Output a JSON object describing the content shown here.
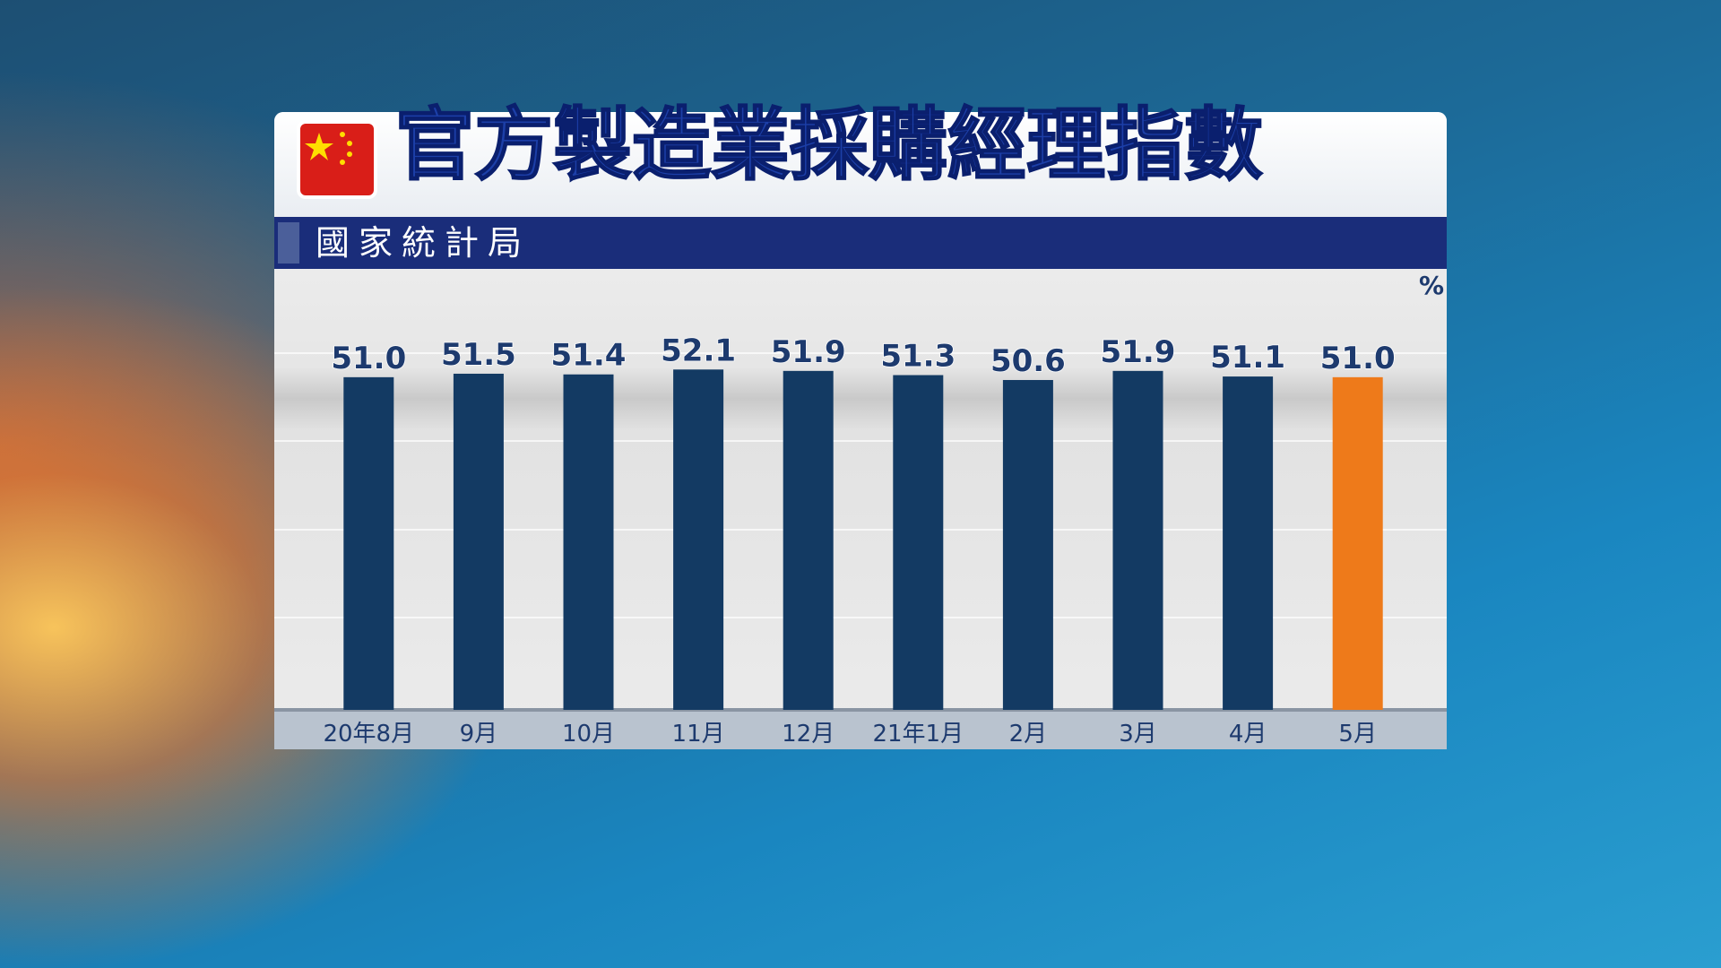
{
  "chart_data": {
    "type": "bar",
    "title": "官方製造業採購經理指數",
    "subtitle": "國家統計局",
    "unit": "%",
    "categories": [
      "20年8月",
      "9月",
      "10月",
      "11月",
      "12月",
      "21年1月",
      "2月",
      "3月",
      "4月",
      "5月"
    ],
    "values": [
      51.0,
      51.5,
      51.4,
      52.1,
      51.9,
      51.3,
      50.6,
      51.9,
      51.1,
      51.0
    ],
    "value_labels": [
      "51.0",
      "51.5",
      "51.4",
      "52.1",
      "51.9",
      "51.3",
      "50.6",
      "51.9",
      "51.1",
      "51.0"
    ],
    "colors": [
      "#133a63",
      "#133a63",
      "#133a63",
      "#133a63",
      "#133a63",
      "#133a63",
      "#133a63",
      "#133a63",
      "#133a63",
      "#ee7a1a"
    ],
    "ylim": [
      3.4,
      66.5
    ]
  }
}
